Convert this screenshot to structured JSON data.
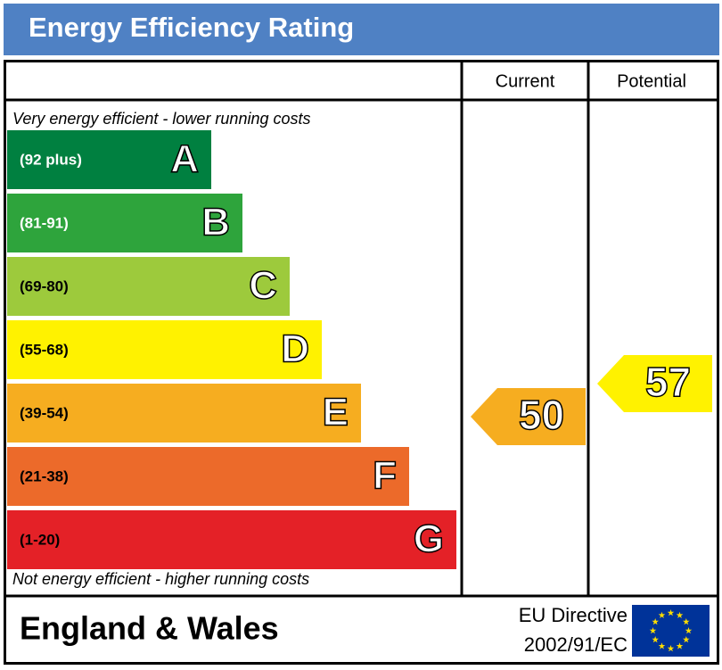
{
  "chart_data": {
    "type": "epc",
    "title": "Energy Efficiency Rating",
    "columns": [
      "Current",
      "Potential"
    ],
    "top_note": "Very energy efficient - lower running costs",
    "bottom_note": "Not energy efficient - higher running costs",
    "bands": [
      {
        "range": "(92 plus)",
        "letter": "A",
        "color": "#008040",
        "text_color": "#ffffff"
      },
      {
        "range": "(81-91)",
        "letter": "B",
        "color": "#2ea43c",
        "text_color": "#ffffff"
      },
      {
        "range": "(69-80)",
        "letter": "C",
        "color": "#9dca3c",
        "text_color": "#000000"
      },
      {
        "range": "(55-68)",
        "letter": "D",
        "color": "#fff200",
        "text_color": "#000000"
      },
      {
        "range": "(39-54)",
        "letter": "E",
        "color": "#f6ad20",
        "text_color": "#000000"
      },
      {
        "range": "(21-38)",
        "letter": "F",
        "color": "#ec6a2a",
        "text_color": "#000000"
      },
      {
        "range": "(1-20)",
        "letter": "G",
        "color": "#e42127",
        "text_color": "#000000"
      }
    ],
    "current": 50,
    "current_color": "#f6ad20",
    "potential": 57,
    "potential_color": "#fff200",
    "region": "England & Wales",
    "directive": [
      "EU Directive",
      "2002/91/EC"
    ]
  }
}
